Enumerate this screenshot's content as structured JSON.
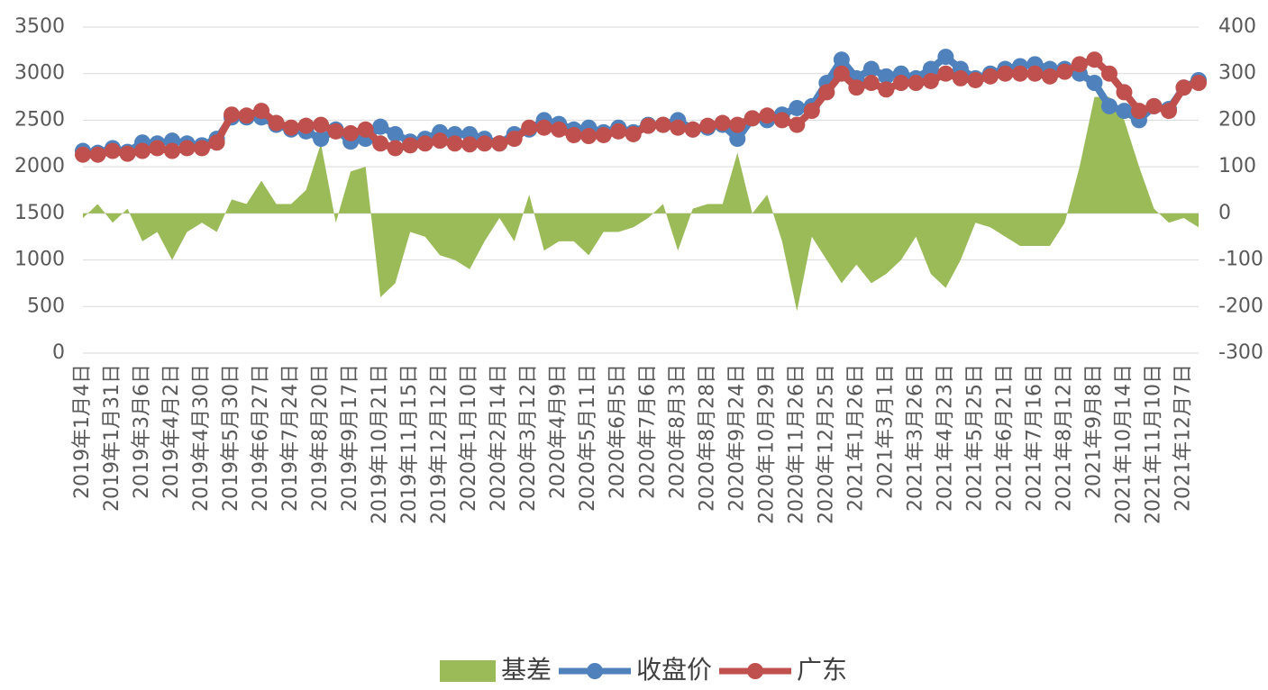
{
  "chart_data": {
    "type": "combo",
    "categories": [
      "2019年1月4日",
      null,
      "2019年1月31日",
      null,
      "2019年3月6日",
      null,
      "2019年4月2日",
      null,
      "2019年4月30日",
      null,
      "2019年5月30日",
      null,
      "2019年6月27日",
      null,
      "2019年7月24日",
      null,
      "2019年8月20日",
      null,
      "2019年9月17日",
      null,
      "2019年10月21日",
      null,
      "2019年11月15日",
      null,
      "2019年12月12日",
      null,
      "2020年1月10日",
      null,
      "2020年2月14日",
      null,
      "2020年3月12日",
      null,
      "2020年4月9日",
      null,
      "2020年5月11日",
      null,
      "2020年6月5日",
      null,
      "2020年7月6日",
      null,
      "2020年8月3日",
      null,
      "2020年8月28日",
      null,
      "2020年9月24日",
      null,
      "2020年10月29日",
      null,
      "2020年11月26日",
      null,
      "2020年12月25日",
      null,
      "2021年1月26日",
      null,
      "2021年3月1日",
      null,
      "2021年3月26日",
      null,
      "2021年4月23日",
      null,
      "2021年5月25日",
      null,
      "2021年6月21日",
      null,
      "2021年7月16日",
      null,
      "2021年8月12日",
      null,
      "2021年9月8日",
      null,
      "2021年10月14日",
      null,
      "2021年11月10日",
      null,
      "2021年12月7日",
      null
    ],
    "series": [
      {
        "name": "基差",
        "kind": "area",
        "axis": "y2",
        "color": "#9bbb59",
        "values": [
          -10,
          20,
          -20,
          10,
          -60,
          -40,
          -100,
          -40,
          -20,
          -40,
          30,
          20,
          70,
          20,
          20,
          50,
          150,
          -20,
          90,
          100,
          -180,
          -150,
          -40,
          -50,
          -90,
          -100,
          -120,
          -60,
          -10,
          -60,
          40,
          -80,
          -60,
          -60,
          -90,
          -40,
          -40,
          -30,
          -10,
          20,
          -80,
          10,
          20,
          20,
          130,
          0,
          40,
          -60,
          -210,
          -50,
          -100,
          -150,
          -110,
          -150,
          -130,
          -100,
          -50,
          -130,
          -160,
          -100,
          -20,
          -30,
          -50,
          -70,
          -70,
          -70,
          -20,
          100,
          250,
          250,
          200,
          100,
          10,
          -20,
          -10,
          -30
        ]
      },
      {
        "name": "收盘价",
        "kind": "line",
        "color": "#4f81bd",
        "values": [
          2170,
          2150,
          2200,
          2160,
          2260,
          2250,
          2280,
          2250,
          2230,
          2300,
          2530,
          2530,
          2530,
          2450,
          2400,
          2380,
          2300,
          2400,
          2270,
          2300,
          2430,
          2350,
          2270,
          2300,
          2370,
          2350,
          2350,
          2300,
          2250,
          2350,
          2400,
          2500,
          2460,
          2400,
          2420,
          2370,
          2420,
          2370,
          2450,
          2450,
          2500,
          2400,
          2420,
          2450,
          2300,
          2520,
          2500,
          2560,
          2630,
          2650,
          2900,
          3150,
          2950,
          3050,
          2970,
          3000,
          2950,
          3050,
          3180,
          3050,
          2950,
          3000,
          3050,
          3080,
          3100,
          3050,
          3050,
          3000,
          2900,
          2650,
          2600,
          2500,
          2650,
          2620,
          2850,
          2930
        ]
      },
      {
        "name": "广东",
        "kind": "line",
        "color": "#c0504d",
        "values": [
          2130,
          2130,
          2170,
          2140,
          2170,
          2200,
          2170,
          2200,
          2200,
          2260,
          2560,
          2550,
          2600,
          2470,
          2420,
          2440,
          2450,
          2380,
          2360,
          2400,
          2250,
          2200,
          2230,
          2250,
          2280,
          2250,
          2240,
          2250,
          2250,
          2300,
          2420,
          2420,
          2400,
          2340,
          2330,
          2340,
          2380,
          2350,
          2440,
          2450,
          2420,
          2400,
          2440,
          2470,
          2450,
          2520,
          2550,
          2500,
          2450,
          2600,
          2800,
          3000,
          2850,
          2900,
          2830,
          2900,
          2900,
          2920,
          3000,
          2950,
          2930,
          2970,
          3000,
          3000,
          3000,
          2970,
          3020,
          3100,
          3150,
          3000,
          2800,
          2600,
          2650,
          2600,
          2850,
          2900
        ]
      }
    ],
    "ylim": [
      0,
      3500
    ],
    "yticks": [
      0,
      500,
      1000,
      1500,
      2000,
      2500,
      3000,
      3500
    ],
    "y2lim": [
      -300,
      400
    ],
    "y2ticks": [
      -300,
      -200,
      -100,
      0,
      100,
      200,
      300,
      400
    ],
    "grid": true,
    "legend": "bottom"
  }
}
